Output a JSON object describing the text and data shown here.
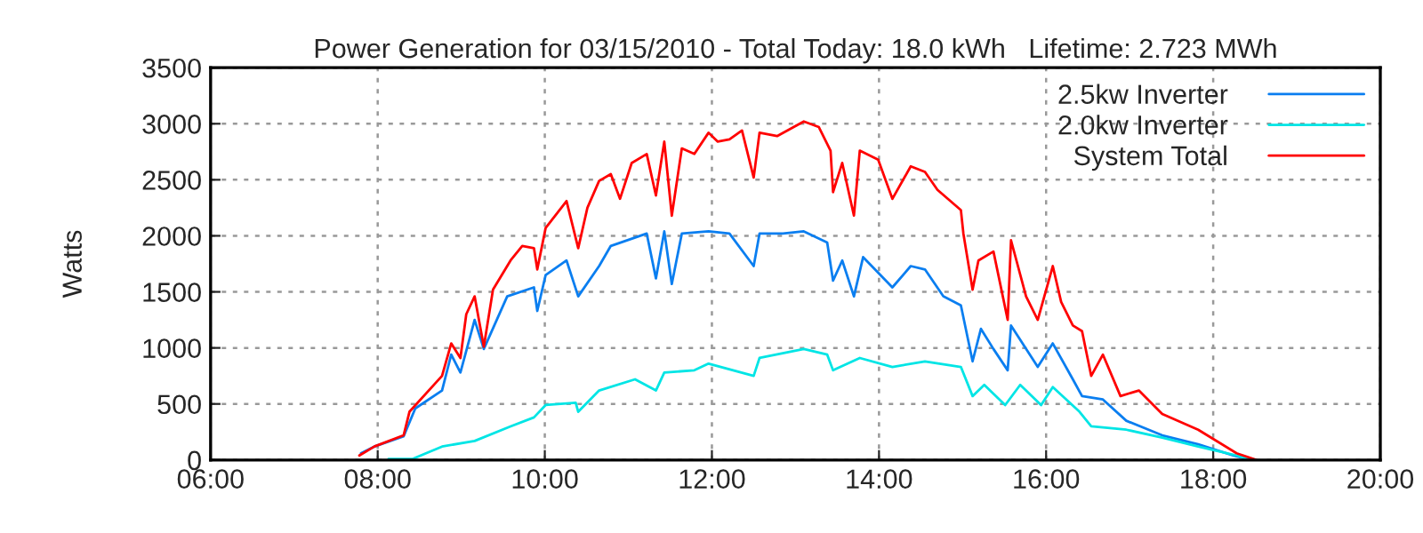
{
  "chart_data": {
    "type": "line",
    "title": "Power Generation for 03/15/2010 - Total Today: 18.0 kWh   Lifetime: 2.723 MWh",
    "ylabel": "Watts",
    "xlim": [
      6,
      20
    ],
    "xticks": [
      {
        "value": 6,
        "label": "06:00"
      },
      {
        "value": 8,
        "label": "08:00"
      },
      {
        "value": 10,
        "label": "10:00"
      },
      {
        "value": 12,
        "label": "12:00"
      },
      {
        "value": 14,
        "label": "14:00"
      },
      {
        "value": 16,
        "label": "16:00"
      },
      {
        "value": 18,
        "label": "18:00"
      },
      {
        "value": 20,
        "label": "20:00"
      }
    ],
    "ylim": [
      0,
      3500
    ],
    "yticks": [
      0,
      500,
      1000,
      1500,
      2000,
      2500,
      3000,
      3500
    ],
    "grid": true,
    "legend": "top right",
    "line_style": "solid",
    "series": [
      {
        "name": "2.5kw Inverter",
        "color": "#0a7ef0",
        "x": [
          7.8,
          7.96,
          8.31,
          8.45,
          8.77,
          8.88,
          8.99,
          9.16,
          9.27,
          9.55,
          9.87,
          9.91,
          10.01,
          10.26,
          10.4,
          10.65,
          10.79,
          11.22,
          11.33,
          11.43,
          11.52,
          11.64,
          11.96,
          12.21,
          12.5,
          12.57,
          12.85,
          13.1,
          13.38,
          13.45,
          13.56,
          13.7,
          13.81,
          14.16,
          14.38,
          14.55,
          14.77,
          14.98,
          15.12,
          15.22,
          15.37,
          15.54,
          15.58,
          15.9,
          16.08,
          16.32,
          16.43,
          16.68,
          16.96,
          17.39,
          17.82,
          18.24,
          18.45
        ],
        "values": [
          60,
          120,
          210,
          460,
          620,
          940,
          780,
          1250,
          990,
          1460,
          1540,
          1330,
          1650,
          1780,
          1460,
          1730,
          1910,
          2020,
          1620,
          2040,
          1570,
          2020,
          2040,
          2020,
          1730,
          2020,
          2020,
          2040,
          1940,
          1600,
          1780,
          1460,
          1810,
          1540,
          1730,
          1700,
          1460,
          1380,
          880,
          1170,
          990,
          800,
          1200,
          830,
          1040,
          720,
          570,
          540,
          350,
          220,
          140,
          40,
          0
        ]
      },
      {
        "name": "2.0kw Inverter",
        "color": "#00e5e5",
        "x": [
          8.13,
          8.42,
          8.77,
          9.16,
          9.59,
          9.87,
          10.01,
          10.37,
          10.4,
          10.65,
          11.08,
          11.33,
          11.43,
          11.79,
          11.96,
          12.5,
          12.57,
          13.1,
          13.38,
          13.45,
          13.77,
          14.16,
          14.55,
          14.98,
          15.12,
          15.26,
          15.51,
          15.69,
          15.94,
          16.08,
          16.4,
          16.54,
          16.96,
          17.39,
          17.82,
          18.28,
          18.45
        ],
        "values": [
          10,
          10,
          120,
          170,
          300,
          380,
          490,
          510,
          430,
          620,
          720,
          620,
          780,
          800,
          860,
          750,
          910,
          990,
          940,
          800,
          910,
          830,
          880,
          830,
          570,
          670,
          490,
          670,
          490,
          650,
          430,
          300,
          270,
          200,
          120,
          40,
          0
        ]
      },
      {
        "name": "System Total",
        "color": "#ff0000",
        "x": [
          7.78,
          7.96,
          8.31,
          8.38,
          8.77,
          8.88,
          8.99,
          9.06,
          9.16,
          9.27,
          9.38,
          9.59,
          9.73,
          9.87,
          9.91,
          10.01,
          10.26,
          10.4,
          10.51,
          10.65,
          10.79,
          10.9,
          11.04,
          11.22,
          11.33,
          11.43,
          11.52,
          11.64,
          11.79,
          11.96,
          12.07,
          12.21,
          12.36,
          12.5,
          12.57,
          12.78,
          13.1,
          13.28,
          13.42,
          13.45,
          13.56,
          13.7,
          13.77,
          13.99,
          14.16,
          14.38,
          14.55,
          14.7,
          14.98,
          15.01,
          15.12,
          15.19,
          15.37,
          15.54,
          15.58,
          15.76,
          15.9,
          16.08,
          16.18,
          16.32,
          16.43,
          16.54,
          16.68,
          16.89,
          17.11,
          17.39,
          17.82,
          18.28,
          18.52
        ],
        "values": [
          40,
          120,
          220,
          430,
          750,
          1040,
          910,
          1300,
          1460,
          1010,
          1520,
          1780,
          1910,
          1890,
          1700,
          2070,
          2310,
          1890,
          2250,
          2490,
          2550,
          2330,
          2650,
          2730,
          2360,
          2840,
          2180,
          2780,
          2730,
          2920,
          2840,
          2860,
          2940,
          2520,
          2920,
          2890,
          3020,
          2970,
          2760,
          2390,
          2650,
          2180,
          2760,
          2680,
          2330,
          2620,
          2570,
          2410,
          2230,
          2020,
          1520,
          1780,
          1860,
          1250,
          1960,
          1460,
          1250,
          1730,
          1410,
          1200,
          1150,
          750,
          940,
          570,
          620,
          410,
          270,
          60,
          0
        ]
      }
    ]
  }
}
